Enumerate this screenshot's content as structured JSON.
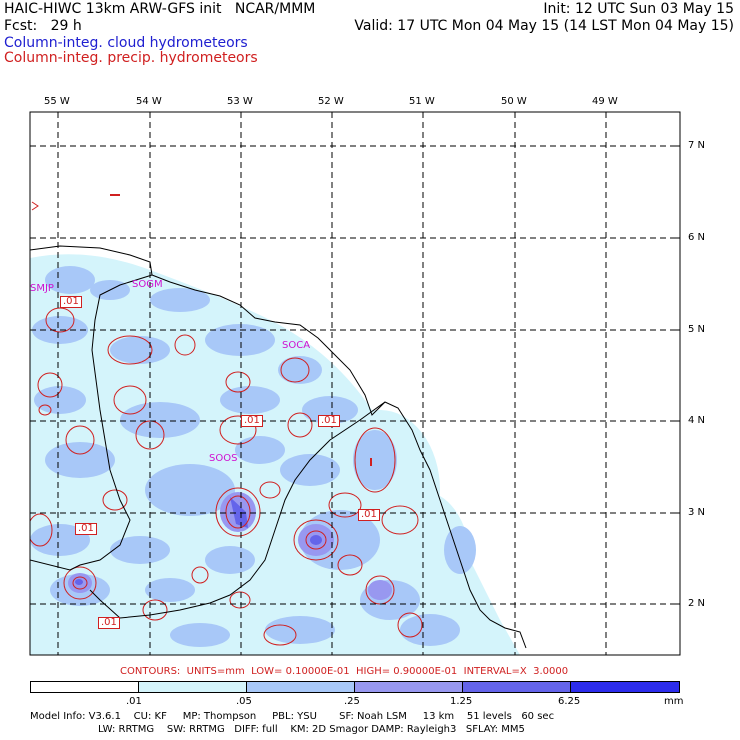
{
  "header": {
    "line1_left": "HAIC-HIWC 13km ARW-GFS init   NCAR/MMM",
    "line1_right": "Init: 12 UTC Sun 03 May 15",
    "line2_left": "Fcst:   29 h",
    "line2_right": "Valid: 17 UTC Mon 04 May 15 (14 LST Mon 04 May 15)",
    "field_cloud": "Column-integ. cloud hydrometeors",
    "field_precip": "Column-integ. precip. hydrometeors"
  },
  "map": {
    "lon_labels": [
      "55 W",
      "54 W",
      "53 W",
      "52 W",
      "51 W",
      "50 W",
      "49 W"
    ],
    "lat_labels": [
      "7 N",
      "6 N",
      "5 N",
      "4 N",
      "3 N",
      "2 N"
    ],
    "station_labels": [
      "SMJP",
      "SOGM",
      "SOCA",
      "SOOS"
    ],
    "contour_labels": [
      ".01",
      ".01",
      ".01",
      ".01",
      ".01",
      ".01"
    ]
  },
  "contours_caption": "CONTOURS:  UNITS=mm  LOW= 0.10000E-01  HIGH= 0.90000E-01  INTERVAL=X  3.0000",
  "colorbar": {
    "tick_labels": [
      ".01",
      ".05",
      ".25",
      "1.25",
      "6.25"
    ],
    "unit": "mm",
    "colors": [
      "#ffffff",
      "#d4f4fb",
      "#a8c8f8",
      "#9898f0",
      "#6464ea",
      "#2c2cec"
    ]
  },
  "footer": {
    "line1": "Model Info: V3.6.1    CU: KF     MP: Thompson     PBL: YSU       SF: Noah LSM     13 km    51 levels   60 sec",
    "line2": "LW: RRTMG    SW: RRTMG   DIFF: full    KM: 2D Smagor DAMP: Rayleigh3   SFLAY: MM5"
  }
}
